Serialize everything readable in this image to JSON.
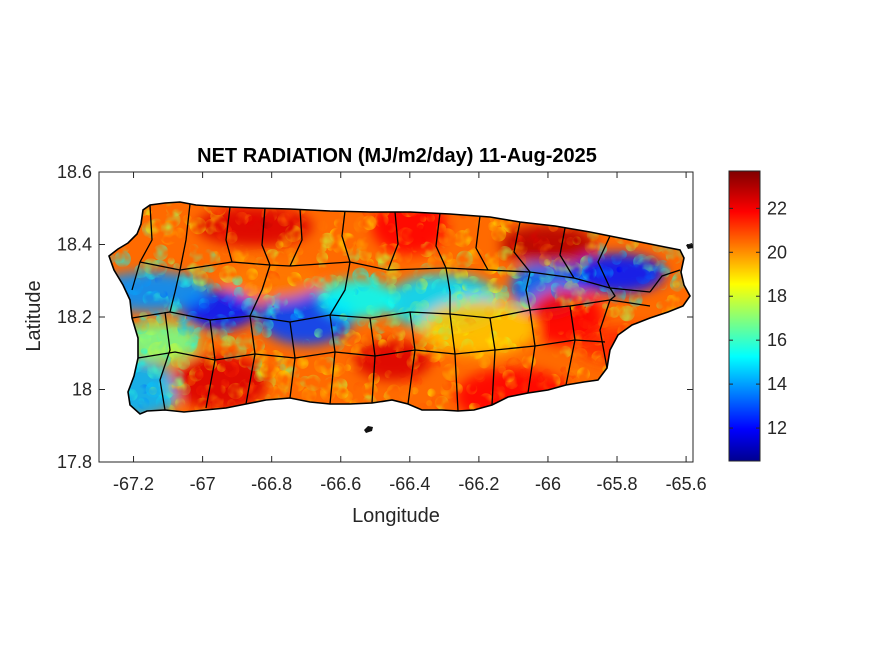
{
  "chart_data": {
    "type": "heatmap",
    "title": "NET RADIATION (MJ/m2/day) 11-Aug-2025",
    "xlabel": "Longitude",
    "ylabel": "Latitude",
    "xlim": [
      -67.3,
      -65.58
    ],
    "ylim": [
      17.8,
      18.6
    ],
    "x_ticks": [
      -67.2,
      -67,
      -66.8,
      -66.6,
      -66.4,
      -66.2,
      -66,
      -65.8,
      -65.6
    ],
    "x_tick_labels": [
      "-67.2",
      "-67",
      "-66.8",
      "-66.6",
      "-66.4",
      "-66.2",
      "-66",
      "-65.8",
      "-65.6"
    ],
    "y_ticks": [
      17.8,
      18,
      18.2,
      18.4,
      18.6
    ],
    "y_tick_labels": [
      "17.8",
      "18",
      "18.2",
      "18.4",
      "18.6"
    ],
    "colorbar": {
      "colormap": "jet",
      "range": [
        10.5,
        23.7
      ],
      "ticks": [
        12,
        14,
        16,
        18,
        20,
        22
      ],
      "tick_labels": [
        "12",
        "14",
        "16",
        "18",
        "20",
        "22"
      ]
    },
    "region": "Puerto Rico",
    "grid": false,
    "patterns": [
      {
        "lon": -66.95,
        "lat": 18.22,
        "value": 12.5
      },
      {
        "lon": -66.7,
        "lat": 18.2,
        "value": 13.0
      },
      {
        "lon": -67.15,
        "lat": 18.27,
        "value": 14.0
      },
      {
        "lon": -66.0,
        "lat": 18.28,
        "value": 13.5
      },
      {
        "lon": -65.8,
        "lat": 18.32,
        "value": 12.5
      },
      {
        "lon": -66.3,
        "lat": 18.24,
        "value": 15.0
      },
      {
        "lon": -66.55,
        "lat": 18.25,
        "value": 15.5
      },
      {
        "lon": -67.2,
        "lat": 18.0,
        "value": 14.5
      },
      {
        "lon": -66.85,
        "lat": 18.45,
        "value": 22.5
      },
      {
        "lon": -66.4,
        "lat": 18.45,
        "value": 22.0
      },
      {
        "lon": -66.0,
        "lat": 18.4,
        "value": 23.0
      },
      {
        "lon": -66.1,
        "lat": 17.98,
        "value": 22.0
      },
      {
        "lon": -66.45,
        "lat": 18.08,
        "value": 22.5
      },
      {
        "lon": -66.95,
        "lat": 18.02,
        "value": 22.5
      },
      {
        "lon": -65.75,
        "lat": 18.12,
        "value": 21.5
      },
      {
        "lon": -65.95,
        "lat": 18.2,
        "value": 22.0
      },
      {
        "lon": -66.8,
        "lat": 18.3,
        "value": 20.5
      },
      {
        "lon": -66.2,
        "lat": 18.17,
        "value": 19.5
      },
      {
        "lon": -67.12,
        "lat": 18.13,
        "value": 17.0
      }
    ]
  }
}
